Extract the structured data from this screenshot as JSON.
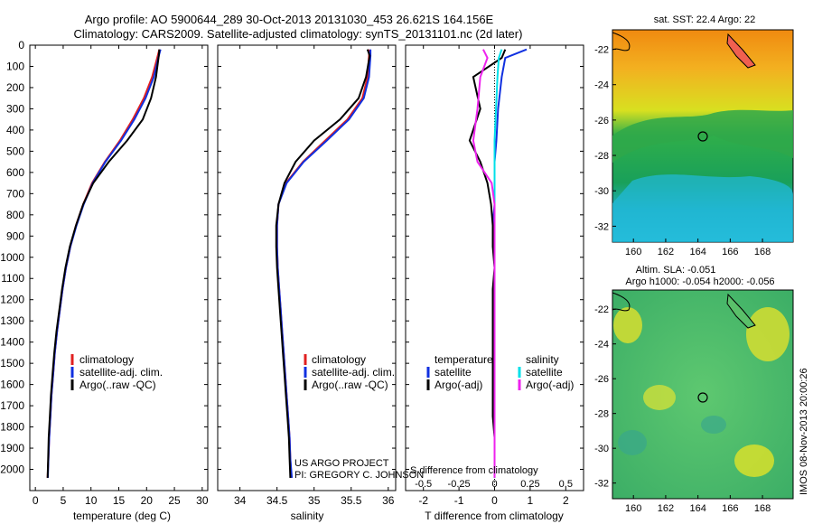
{
  "title": {
    "line1": "Argo profile: AO 5900644_289 30-Oct-2013 20131030_453 26.621S 164.156E",
    "line2": "Climatology: CARS2009. Satellite-adjusted climatology: synTS_20131101.nc (2d later)"
  },
  "colors": {
    "climatology": "#e02020",
    "satellite": "#1030e0",
    "argo": "#000000",
    "sat_s": "#00e0e8",
    "argo_s": "#ee22ee"
  },
  "chart_data": [
    {
      "type": "line",
      "xlabel": "temperature (deg C)",
      "ylabel": "",
      "xlim": [
        -1,
        31
      ],
      "ylim": [
        2100,
        0
      ],
      "xticks": [
        0,
        5,
        10,
        15,
        20,
        25,
        30
      ],
      "yticks": [
        0,
        100,
        200,
        300,
        400,
        500,
        600,
        700,
        800,
        900,
        1000,
        1100,
        1200,
        1300,
        1400,
        1500,
        1600,
        1700,
        1800,
        1900,
        2000
      ],
      "series": [
        {
          "name": "climatology",
          "color": "#e02020",
          "x": [
            22.3,
            22.0,
            21.0,
            19.5,
            17.5,
            15.2,
            12.5,
            10.2,
            8.6,
            7.3,
            6.3,
            5.5,
            4.9,
            4.4,
            3.9,
            3.5,
            3.2,
            2.9,
            2.7,
            2.5,
            2.35,
            2.2
          ],
          "y": [
            20,
            50,
            150,
            250,
            350,
            450,
            550,
            650,
            750,
            850,
            950,
            1050,
            1150,
            1250,
            1350,
            1450,
            1550,
            1650,
            1750,
            1850,
            1950,
            2040
          ]
        },
        {
          "name": "satellite-adj. clim.",
          "color": "#1030e0",
          "x": [
            22.5,
            22.2,
            21.3,
            19.8,
            17.8,
            15.4,
            12.6,
            10.3,
            8.7,
            7.4,
            6.3,
            5.5,
            4.9,
            4.4,
            3.9,
            3.5,
            3.2,
            2.9,
            2.7,
            2.5,
            2.35,
            2.25
          ],
          "y": [
            20,
            50,
            150,
            250,
            350,
            450,
            550,
            650,
            750,
            850,
            950,
            1050,
            1150,
            1250,
            1350,
            1450,
            1550,
            1650,
            1750,
            1850,
            1950,
            2040
          ]
        },
        {
          "name": "Argo(..raw -QC)",
          "color": "#000000",
          "x": [
            22.3,
            22.2,
            21.7,
            20.8,
            19.3,
            16.5,
            13.2,
            10.4,
            8.6,
            7.3,
            6.2,
            5.4,
            4.8,
            4.3,
            3.8,
            3.4,
            3.1,
            2.8,
            2.6,
            2.4,
            2.3,
            2.2
          ],
          "y": [
            20,
            50,
            150,
            250,
            350,
            450,
            550,
            650,
            750,
            850,
            950,
            1050,
            1150,
            1250,
            1350,
            1450,
            1550,
            1650,
            1750,
            1850,
            1950,
            2040
          ]
        }
      ],
      "legend": [
        "climatology",
        "satellite-adj. clim.",
        "Argo(..raw -QC)"
      ]
    },
    {
      "type": "line",
      "xlabel": "salinity",
      "xlim": [
        33.7,
        36.1
      ],
      "ylim": [
        2100,
        0
      ],
      "xticks": [
        34,
        34.5,
        35,
        35.5,
        36
      ],
      "xticklabels": [
        "34",
        "34.5",
        "35",
        "35.5",
        "36"
      ],
      "series": [
        {
          "name": "climatology",
          "color": "#e02020",
          "x": [
            35.74,
            35.74,
            35.72,
            35.65,
            35.45,
            35.15,
            34.85,
            34.62,
            34.52,
            34.5,
            34.5,
            34.51,
            34.53,
            34.55,
            34.57,
            34.59,
            34.61,
            34.63,
            34.65,
            34.67,
            34.68,
            34.69
          ],
          "y": [
            20,
            50,
            150,
            250,
            350,
            450,
            550,
            650,
            750,
            850,
            950,
            1050,
            1150,
            1250,
            1350,
            1450,
            1550,
            1650,
            1750,
            1850,
            1950,
            2040
          ]
        },
        {
          "name": "satellite-adj. clim.",
          "color": "#1030e0",
          "x": [
            35.76,
            35.76,
            35.74,
            35.67,
            35.47,
            35.17,
            34.86,
            34.63,
            34.52,
            34.5,
            34.5,
            34.51,
            34.53,
            34.55,
            34.57,
            34.59,
            34.61,
            34.63,
            34.65,
            34.67,
            34.68,
            34.7
          ],
          "y": [
            20,
            50,
            150,
            250,
            350,
            450,
            550,
            650,
            750,
            850,
            950,
            1050,
            1150,
            1250,
            1350,
            1450,
            1550,
            1650,
            1750,
            1850,
            1950,
            2040
          ]
        },
        {
          "name": "Argo(..raw -QC)",
          "color": "#000000",
          "x": [
            35.72,
            35.75,
            35.7,
            35.6,
            35.35,
            35.0,
            34.75,
            34.6,
            34.52,
            34.49,
            34.49,
            34.5,
            34.52,
            34.54,
            34.56,
            34.58,
            34.6,
            34.62,
            34.64,
            34.66,
            34.67,
            34.68
          ],
          "y": [
            20,
            50,
            150,
            250,
            350,
            450,
            550,
            650,
            750,
            850,
            950,
            1050,
            1150,
            1250,
            1350,
            1450,
            1550,
            1650,
            1750,
            1850,
            1950,
            2040
          ]
        }
      ],
      "legend": [
        "climatology",
        "satellite-adj. clim.",
        "Argo(..raw -QC)"
      ]
    },
    {
      "type": "line",
      "xlabel": "T difference from climatology",
      "xlabel2": "S difference from climatology",
      "xlim": [
        -2.5,
        2.5
      ],
      "ylim": [
        2100,
        0
      ],
      "xticks": [
        -2,
        -1,
        0,
        1,
        2
      ],
      "xticks2": [
        -0.5,
        -0.25,
        0,
        0.25,
        0.5
      ],
      "xticklabels2": [
        "-0.5",
        "-0.25",
        "0",
        "0.25",
        "0.5"
      ],
      "legend_groups": [
        "temperature",
        "salinity"
      ],
      "series": [
        {
          "name": "satellite",
          "group": "temperature",
          "color": "#1030e0",
          "x": [
            0.9,
            0.3,
            0.2,
            0.1,
            0.05,
            0.0,
            0.0,
            0.0,
            -0.05,
            0.0,
            0.0,
            0.0,
            0.0,
            0.0,
            0.0,
            0.0,
            0.0,
            0.0,
            0.0,
            0.0
          ],
          "y": [
            20,
            60,
            150,
            300,
            450,
            550,
            650,
            750,
            850,
            950,
            1050,
            1150,
            1250,
            1400,
            1550,
            1650,
            1750,
            1850,
            1950,
            2040
          ]
        },
        {
          "name": "Argo(-adj)",
          "group": "temperature",
          "color": "#000000",
          "x": [
            0.3,
            0.2,
            -0.6,
            -0.4,
            -0.7,
            -0.4,
            -0.2,
            -0.1,
            -0.05,
            -0.05,
            0.0,
            -0.05,
            -0.05,
            -0.05,
            -0.05,
            -0.05,
            -0.05,
            0.0,
            0.0,
            0.0
          ],
          "y": [
            20,
            60,
            150,
            300,
            450,
            550,
            650,
            750,
            850,
            950,
            1050,
            1150,
            1250,
            1400,
            1550,
            1650,
            1750,
            1850,
            1950,
            2040
          ]
        },
        {
          "name": "satellite",
          "group": "salinity",
          "color": "#00e0e8",
          "x": [
            0.05,
            0.03,
            0.02,
            0.01,
            0.0,
            0.0,
            0.0,
            0.0,
            0.0,
            0.0,
            0.0,
            0.0,
            0.0,
            0.0,
            0.0,
            0.0,
            0.0,
            0.0,
            0.0,
            0.0
          ],
          "y": [
            20,
            60,
            150,
            300,
            450,
            550,
            650,
            750,
            850,
            950,
            1050,
            1150,
            1250,
            1400,
            1550,
            1650,
            1750,
            1850,
            1950,
            2040
          ]
        },
        {
          "name": "Argo(-adj)",
          "group": "salinity",
          "color": "#ee22ee",
          "x": [
            -0.08,
            -0.05,
            -0.1,
            -0.12,
            -0.15,
            -0.12,
            -0.02,
            0.0,
            0.0,
            0.0,
            0.0,
            0.0,
            0.0,
            0.0,
            0.0,
            0.0,
            0.0,
            0.0,
            0.0,
            0.0
          ],
          "y": [
            20,
            60,
            150,
            300,
            450,
            550,
            650,
            750,
            850,
            950,
            1050,
            1150,
            1250,
            1400,
            1550,
            1650,
            1750,
            1850,
            1950,
            2040
          ]
        }
      ]
    },
    {
      "type": "heatmap",
      "title": "sat. SST: 22.4  Argo: 22",
      "xlim": [
        158.7,
        169.9
      ],
      "ylim": [
        -32.9,
        -20.9
      ],
      "xticks": [
        160,
        162,
        164,
        166,
        168
      ],
      "yticks": [
        -22,
        -24,
        -26,
        -28,
        -30,
        -32
      ],
      "marker": {
        "lon": 164.156,
        "lat": -26.621
      }
    },
    {
      "type": "heatmap",
      "title": "Altim. SLA: -0.051",
      "title2": "Argo h1000: -0.054 h2000: -0.056",
      "xlim": [
        158.7,
        169.9
      ],
      "ylim": [
        -32.9,
        -20.9
      ],
      "xticks": [
        160,
        162,
        164,
        166,
        168
      ],
      "yticks": [
        -22,
        -24,
        -26,
        -28,
        -30,
        -32
      ],
      "marker": {
        "lon": 164.156,
        "lat": -26.621
      }
    }
  ],
  "notes": {
    "project": "US ARGO PROJECT",
    "pi": "PI: GREGORY C. JOHNSON",
    "stamp": "IMOS 08-Nov-2013 20:00:26"
  }
}
